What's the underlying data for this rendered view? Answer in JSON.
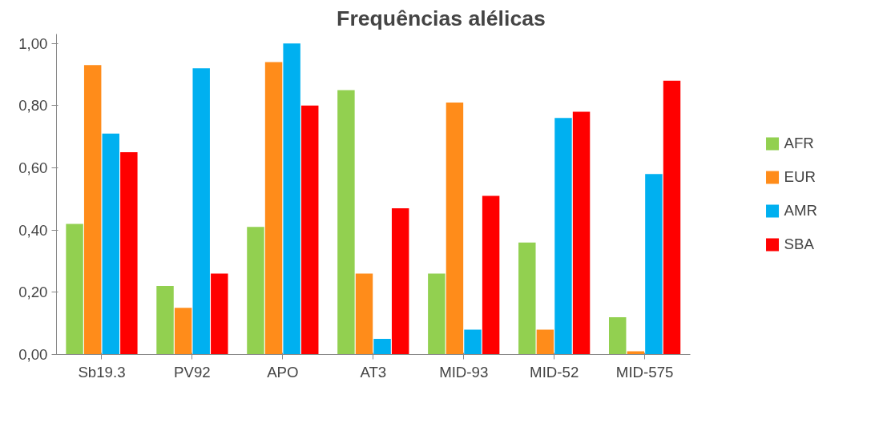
{
  "chart_data": {
    "type": "bar",
    "title": "Frequências alélicas",
    "categories": [
      "Sb19.3",
      "PV92",
      "APO",
      "AT3",
      "MID-93",
      "MID-52",
      "MID-575"
    ],
    "series": [
      {
        "name": "AFR",
        "color": "#92d050",
        "values": [
          0.42,
          0.22,
          0.41,
          0.85,
          0.26,
          0.36,
          0.12
        ]
      },
      {
        "name": "EUR",
        "color": "#ff8c1a",
        "values": [
          0.93,
          0.15,
          0.94,
          0.26,
          0.81,
          0.08,
          0.01
        ]
      },
      {
        "name": "AMR",
        "color": "#00b0f0",
        "values": [
          0.71,
          0.92,
          1.0,
          0.05,
          0.08,
          0.76,
          0.58
        ]
      },
      {
        "name": "SBA",
        "color": "#ff0000",
        "values": [
          0.65,
          0.26,
          0.8,
          0.47,
          0.51,
          0.78,
          0.88
        ]
      }
    ],
    "ylim": [
      0,
      1.0
    ],
    "yticks": [
      {
        "value": 0,
        "label": "0,00"
      },
      {
        "value": 0.2,
        "label": "0,20"
      },
      {
        "value": 0.4,
        "label": "0,40"
      },
      {
        "value": 0.6,
        "label": "0,60"
      },
      {
        "value": 0.8,
        "label": "0,80"
      },
      {
        "value": 1.0,
        "label": "1,00"
      }
    ],
    "grid": false,
    "legend": "right"
  }
}
